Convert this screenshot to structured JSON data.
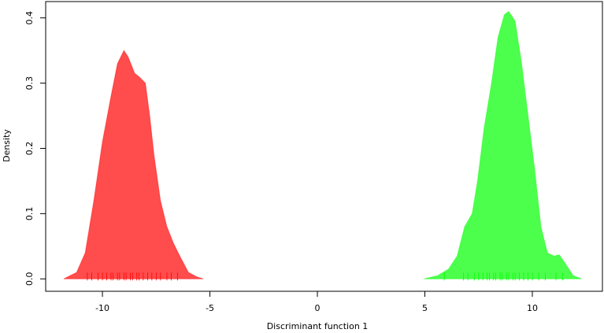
{
  "chart_data": {
    "type": "density",
    "xlabel": "Discriminant function 1",
    "ylabel": "Density",
    "xlim": [
      -12.64,
      13.26
    ],
    "ylim": [
      -0.019,
      0.425
    ],
    "xticks": [
      -10,
      -5,
      0,
      5,
      10
    ],
    "yticks": [
      {
        "value": 0,
        "label": "0.0"
      },
      {
        "value": 0.1,
        "label": "0.1"
      },
      {
        "value": 0.2,
        "label": "0.2"
      },
      {
        "value": 0.3,
        "label": "0.3"
      },
      {
        "value": 0.4,
        "label": "0.4"
      }
    ],
    "series": [
      {
        "color": "#ff0000",
        "x": [
          -11.8,
          -11.2,
          -10.8,
          -10.4,
          -10.0,
          -9.6,
          -9.3,
          -9.0,
          -8.8,
          -8.5,
          -8.3,
          -8.0,
          -7.8,
          -7.6,
          -7.3,
          -7.0,
          -6.7,
          -6.4,
          -6.0,
          -5.6,
          -5.3
        ],
        "values": [
          0,
          0.01,
          0.04,
          0.12,
          0.21,
          0.28,
          0.33,
          0.35,
          0.34,
          0.315,
          0.31,
          0.3,
          0.25,
          0.19,
          0.12,
          0.08,
          0.055,
          0.035,
          0.01,
          0.003,
          0
        ],
        "rug": [
          -10.7,
          -10.5,
          -10.2,
          -10.0,
          -9.8,
          -9.6,
          -9.5,
          -9.3,
          -9.2,
          -9.0,
          -8.9,
          -8.7,
          -8.6,
          -8.4,
          -8.3,
          -8.1,
          -7.9,
          -7.7,
          -7.5,
          -7.3,
          -7.0,
          -6.8,
          -6.5
        ]
      },
      {
        "color": "#00ff00",
        "x": [
          4.95,
          5.6,
          6.1,
          6.5,
          6.85,
          7.2,
          7.45,
          7.75,
          8.1,
          8.4,
          8.7,
          8.9,
          9.2,
          9.5,
          9.8,
          10.1,
          10.4,
          10.7,
          11.0,
          11.25,
          11.5,
          11.9,
          12.3
        ],
        "values": [
          0,
          0.005,
          0.015,
          0.035,
          0.08,
          0.1,
          0.15,
          0.23,
          0.3,
          0.37,
          0.405,
          0.41,
          0.395,
          0.33,
          0.25,
          0.17,
          0.08,
          0.04,
          0.035,
          0.037,
          0.025,
          0.005,
          0
        ],
        "rug": [
          5.9,
          6.8,
          7.0,
          7.3,
          7.5,
          7.7,
          7.9,
          8.0,
          8.2,
          8.3,
          8.5,
          8.6,
          8.8,
          8.9,
          9.1,
          9.2,
          9.4,
          9.6,
          9.8,
          10.0,
          10.3,
          10.6,
          11.1,
          11.4
        ]
      }
    ]
  }
}
